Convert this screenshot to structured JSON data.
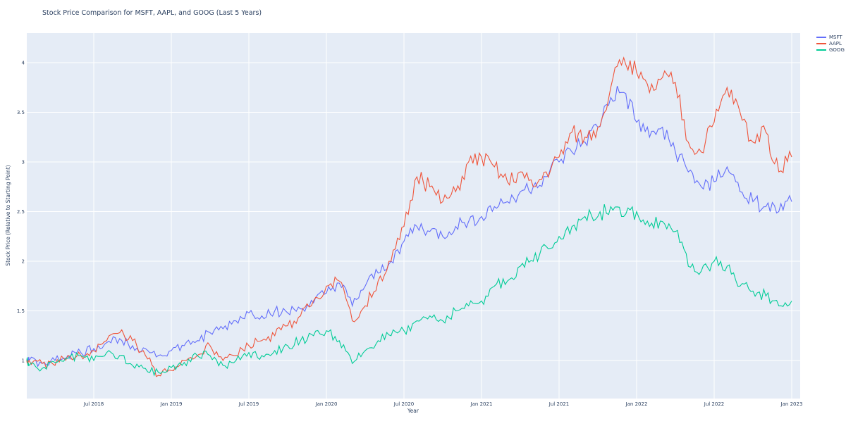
{
  "chart_data": {
    "type": "line",
    "title": "Stock Price Comparison for MSFT, AAPL, and GOOG (Last 5 Years)",
    "xlabel": "Year",
    "ylabel": "Stock Price (Relative to Starting Point)",
    "ylim": [
      0.62,
      4.3
    ],
    "yticks": [
      1,
      1.5,
      2,
      2.5,
      3,
      3.5,
      4
    ],
    "ytick_labels": [
      "1",
      "1.5",
      "2",
      "2.5",
      "3",
      "3.5",
      "4"
    ],
    "xtick_labels": [
      "Jul 2018",
      "Jan 2019",
      "Jul 2019",
      "Jan 2020",
      "Jul 2020",
      "Jan 2021",
      "Jul 2021",
      "Jan 2022",
      "Jul 2022",
      "Jan 2023"
    ],
    "grid": true,
    "legend_position": "top-right-outside",
    "x": [
      "2018-02",
      "2018-03",
      "2018-04",
      "2018-05",
      "2018-06",
      "2018-07",
      "2018-08",
      "2018-09",
      "2018-10",
      "2018-11",
      "2018-12",
      "2019-01",
      "2019-02",
      "2019-03",
      "2019-04",
      "2019-05",
      "2019-06",
      "2019-07",
      "2019-08",
      "2019-09",
      "2019-10",
      "2019-11",
      "2019-12",
      "2020-01",
      "2020-02",
      "2020-03",
      "2020-04",
      "2020-05",
      "2020-06",
      "2020-07",
      "2020-08",
      "2020-09",
      "2020-10",
      "2020-11",
      "2020-12",
      "2021-01",
      "2021-02",
      "2021-03",
      "2021-04",
      "2021-05",
      "2021-06",
      "2021-07",
      "2021-08",
      "2021-09",
      "2021-10",
      "2021-11",
      "2021-12",
      "2022-01",
      "2022-02",
      "2022-03",
      "2022-04",
      "2022-05",
      "2022-06",
      "2022-07",
      "2022-08",
      "2022-09",
      "2022-10",
      "2022-11",
      "2022-12",
      "2023-01"
    ],
    "series": [
      {
        "name": "MSFT",
        "color": "#636efa",
        "values": [
          1.0,
          0.97,
          1.0,
          1.05,
          1.08,
          1.12,
          1.18,
          1.22,
          1.15,
          1.12,
          1.05,
          1.1,
          1.15,
          1.2,
          1.28,
          1.32,
          1.4,
          1.48,
          1.45,
          1.5,
          1.48,
          1.52,
          1.58,
          1.68,
          1.78,
          1.55,
          1.75,
          1.88,
          2.0,
          2.2,
          2.35,
          2.3,
          2.25,
          2.35,
          2.4,
          2.45,
          2.55,
          2.6,
          2.7,
          2.75,
          2.85,
          3.0,
          3.1,
          3.2,
          3.35,
          3.65,
          3.7,
          3.4,
          3.25,
          3.35,
          3.1,
          2.9,
          2.75,
          2.8,
          2.95,
          2.7,
          2.6,
          2.55,
          2.5,
          2.6
        ]
      },
      {
        "name": "AAPL",
        "color": "#ef553b",
        "values": [
          1.0,
          0.97,
          0.95,
          1.05,
          1.05,
          1.1,
          1.2,
          1.28,
          1.2,
          1.05,
          0.85,
          0.9,
          1.0,
          1.05,
          1.15,
          1.0,
          1.05,
          1.15,
          1.2,
          1.25,
          1.35,
          1.45,
          1.6,
          1.75,
          1.8,
          1.4,
          1.55,
          1.8,
          2.0,
          2.35,
          2.85,
          2.75,
          2.6,
          2.7,
          3.0,
          3.05,
          2.95,
          2.8,
          2.9,
          2.75,
          2.9,
          3.05,
          3.3,
          3.25,
          3.35,
          3.75,
          4.05,
          3.9,
          3.7,
          3.85,
          3.8,
          3.2,
          3.1,
          3.4,
          3.75,
          3.5,
          3.2,
          3.3,
          2.9,
          3.05
        ]
      },
      {
        "name": "GOOG",
        "color": "#00cc96",
        "values": [
          0.95,
          0.92,
          0.98,
          1.02,
          1.05,
          1.0,
          1.08,
          1.05,
          0.95,
          0.92,
          0.88,
          0.93,
          0.98,
          1.05,
          1.05,
          0.95,
          1.0,
          1.08,
          1.05,
          1.1,
          1.15,
          1.2,
          1.25,
          1.3,
          1.2,
          0.97,
          1.1,
          1.2,
          1.25,
          1.3,
          1.4,
          1.45,
          1.4,
          1.5,
          1.55,
          1.6,
          1.75,
          1.8,
          1.95,
          2.0,
          2.15,
          2.25,
          2.35,
          2.45,
          2.45,
          2.55,
          2.45,
          2.5,
          2.35,
          2.4,
          2.3,
          1.95,
          1.9,
          2.0,
          1.95,
          1.75,
          1.7,
          1.65,
          1.55,
          1.6
        ]
      }
    ]
  },
  "legend": {
    "items": [
      {
        "label": "MSFT",
        "color": "#636efa"
      },
      {
        "label": "AAPL",
        "color": "#ef553b"
      },
      {
        "label": "GOOG",
        "color": "#00cc96"
      }
    ]
  }
}
